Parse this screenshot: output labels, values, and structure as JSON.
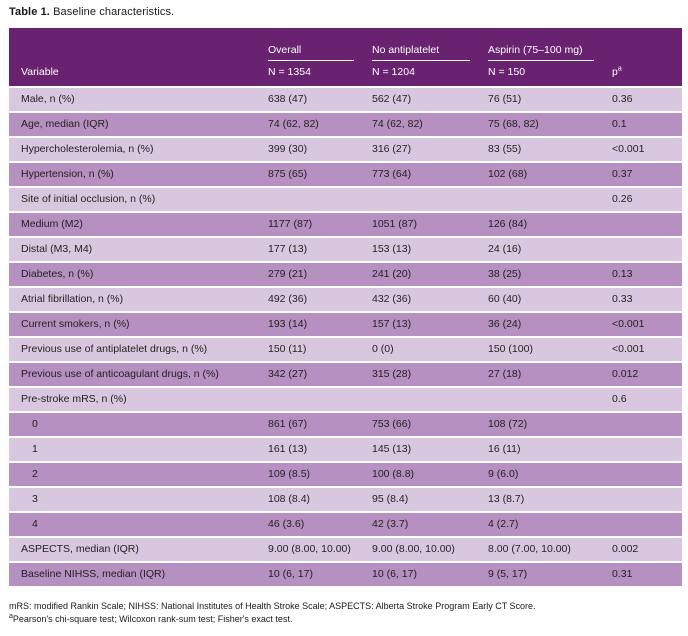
{
  "page": {
    "title_bold": "Table 1.",
    "title_rest": "Baseline characteristics."
  },
  "table": {
    "columns": {
      "variable": "Variable",
      "groups": [
        {
          "label": "Overall",
          "n": "N = 1354"
        },
        {
          "label": "No antiplatelet",
          "n": "N = 1204"
        },
        {
          "label": "Aspirin (75–100 mg)",
          "n": "N = 150"
        }
      ],
      "p_label": "p",
      "p_sup": "a"
    },
    "rows": [
      {
        "label": "Male, n (%)",
        "indent": false,
        "overall": "638 (47)",
        "no_antiplatelet": "562 (47)",
        "aspirin": "76 (51)",
        "p": "0.36"
      },
      {
        "label": "Age, median (IQR)",
        "indent": false,
        "overall": "74 (62, 82)",
        "no_antiplatelet": "74 (62, 82)",
        "aspirin": "75 (68, 82)",
        "p": "0.1"
      },
      {
        "label": "Hypercholesterolemia, n (%)",
        "indent": false,
        "overall": "399 (30)",
        "no_antiplatelet": "316 (27)",
        "aspirin": "83 (55)",
        "p": "<0.001"
      },
      {
        "label": "Hypertension, n (%)",
        "indent": false,
        "overall": "875 (65)",
        "no_antiplatelet": "773 (64)",
        "aspirin": "102 (68)",
        "p": "0.37"
      },
      {
        "label": "Site of initial occlusion, n (%)",
        "indent": false,
        "overall": "",
        "no_antiplatelet": "",
        "aspirin": "",
        "p": "0.26"
      },
      {
        "label": "Medium (M2)",
        "indent": false,
        "overall": "1177 (87)",
        "no_antiplatelet": "1051 (87)",
        "aspirin": "126 (84)",
        "p": ""
      },
      {
        "label": "Distal (M3, M4)",
        "indent": false,
        "overall": "177 (13)",
        "no_antiplatelet": "153 (13)",
        "aspirin": "24 (16)",
        "p": ""
      },
      {
        "label": "Diabetes, n (%)",
        "indent": false,
        "overall": "279 (21)",
        "no_antiplatelet": "241 (20)",
        "aspirin": "38 (25)",
        "p": "0.13"
      },
      {
        "label": "Atrial fibrillation, n (%)",
        "indent": false,
        "overall": "492 (36)",
        "no_antiplatelet": "432 (36)",
        "aspirin": "60 (40)",
        "p": "0.33"
      },
      {
        "label": "Current smokers, n (%)",
        "indent": false,
        "overall": "193 (14)",
        "no_antiplatelet": "157 (13)",
        "aspirin": "36 (24)",
        "p": "<0.001"
      },
      {
        "label": "Previous use of antiplatelet drugs, n (%)",
        "indent": false,
        "overall": "150 (11)",
        "no_antiplatelet": "0 (0)",
        "aspirin": "150 (100)",
        "p": "<0.001"
      },
      {
        "label": "Previous use of anticoagulant drugs, n (%)",
        "indent": false,
        "overall": "342 (27)",
        "no_antiplatelet": "315 (28)",
        "aspirin": "27 (18)",
        "p": "0.012"
      },
      {
        "label": "Pre-stroke mRS, n (%)",
        "indent": false,
        "overall": "",
        "no_antiplatelet": "",
        "aspirin": "",
        "p": "0.6"
      },
      {
        "label": "0",
        "indent": true,
        "overall": "861 (67)",
        "no_antiplatelet": "753 (66)",
        "aspirin": "108 (72)",
        "p": ""
      },
      {
        "label": "1",
        "indent": true,
        "overall": "161 (13)",
        "no_antiplatelet": "145 (13)",
        "aspirin": "16 (11)",
        "p": ""
      },
      {
        "label": "2",
        "indent": true,
        "overall": "109 (8.5)",
        "no_antiplatelet": "100 (8.8)",
        "aspirin": "9 (6.0)",
        "p": ""
      },
      {
        "label": "3",
        "indent": true,
        "overall": "108 (8.4)",
        "no_antiplatelet": "95 (8.4)",
        "aspirin": "13 (8.7)",
        "p": ""
      },
      {
        "label": "4",
        "indent": true,
        "overall": "46 (3.6)",
        "no_antiplatelet": "42 (3.7)",
        "aspirin": "4 (2.7)",
        "p": ""
      },
      {
        "label": "ASPECTS, median (IQR)",
        "indent": false,
        "overall": "9.00 (8.00, 10.00)",
        "no_antiplatelet": "9.00 (8.00, 10.00)",
        "aspirin": "8.00 (7.00, 10.00)",
        "p": "0.002"
      },
      {
        "label": "Baseline NIHSS, median (IQR)",
        "indent": false,
        "overall": "10 (6, 17)",
        "no_antiplatelet": "10 (6, 17)",
        "aspirin": "9 (5, 17)",
        "p": "0.31"
      }
    ]
  },
  "footnotes": {
    "line1": "mRS: modified Rankin Scale; NIHSS: National Institutes of Health Stroke Scale; ASPECTS: Alberta Stroke Program Early CT Score.",
    "line2_sup": "a",
    "line2": "Pearson's chi-square test; Wilcoxon rank-sum test; Fisher's exact test."
  },
  "colors": {
    "header_bg": "#682270",
    "header_text": "#ffffff",
    "row_dark": "#b590c0",
    "row_light": "#d8c7de",
    "body_text": "#231f20"
  }
}
